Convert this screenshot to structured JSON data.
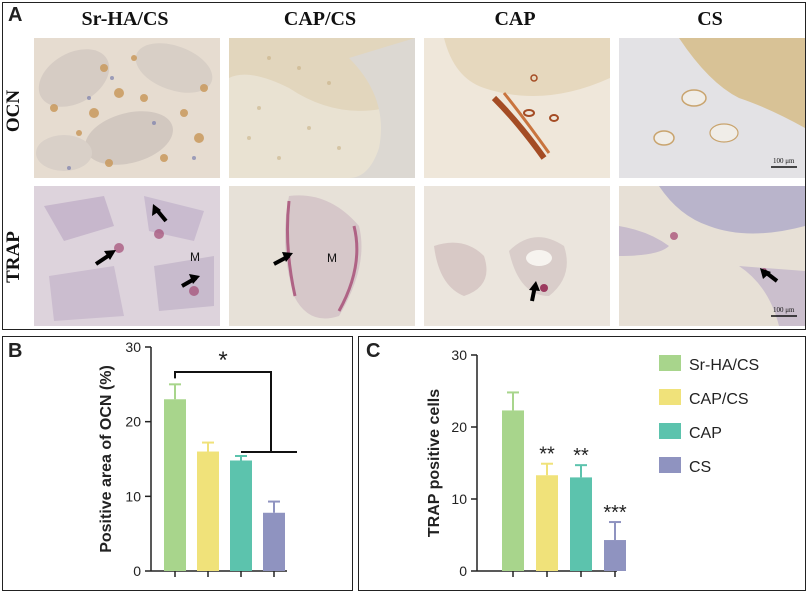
{
  "panels": {
    "a": {
      "letter": "A",
      "columns": [
        "Sr-HA/CS",
        "CAP/CS",
        "CAP",
        "CS"
      ],
      "rows": [
        "OCN",
        "TRAP"
      ],
      "scale_bar": "100 μm",
      "marker_m": "M"
    },
    "b": {
      "letter": "B"
    },
    "c": {
      "letter": "C"
    }
  },
  "legend": [
    {
      "name": "Sr-HA/CS",
      "color": "#a8d58c"
    },
    {
      "name": "CAP/CS",
      "color": "#f0e27a"
    },
    {
      "name": "CAP",
      "color": "#5cc3ad"
    },
    {
      "name": "CS",
      "color": "#8f93c0"
    }
  ],
  "chart_data": [
    {
      "type": "bar",
      "categories": [
        "Sr-HA/CS",
        "CAP/CS",
        "CAP",
        "CS"
      ],
      "values": [
        23.0,
        16.0,
        14.8,
        7.8
      ],
      "errors": [
        2.0,
        1.2,
        0.6,
        1.5
      ],
      "colors": [
        "#a8d58c",
        "#f0e27a",
        "#5cc3ad",
        "#8f93c0"
      ],
      "ylabel": "Positive area of OCN (%)",
      "ylim": [
        0,
        30
      ],
      "yticks": [
        "0",
        "10",
        "20",
        "30"
      ],
      "significance": "*"
    },
    {
      "type": "bar",
      "categories": [
        "Sr-HA/CS",
        "CAP/CS",
        "CAP",
        "CS"
      ],
      "values": [
        22.3,
        13.3,
        13.0,
        4.3
      ],
      "errors": [
        2.5,
        1.6,
        1.7,
        2.5
      ],
      "colors": [
        "#a8d58c",
        "#f0e27a",
        "#5cc3ad",
        "#8f93c0"
      ],
      "ylabel": "TRAP positive cells",
      "ylim": [
        0,
        30
      ],
      "yticks": [
        "0",
        "10",
        "20",
        "30"
      ],
      "annotations": [
        "",
        "**",
        "**",
        "***"
      ]
    }
  ]
}
